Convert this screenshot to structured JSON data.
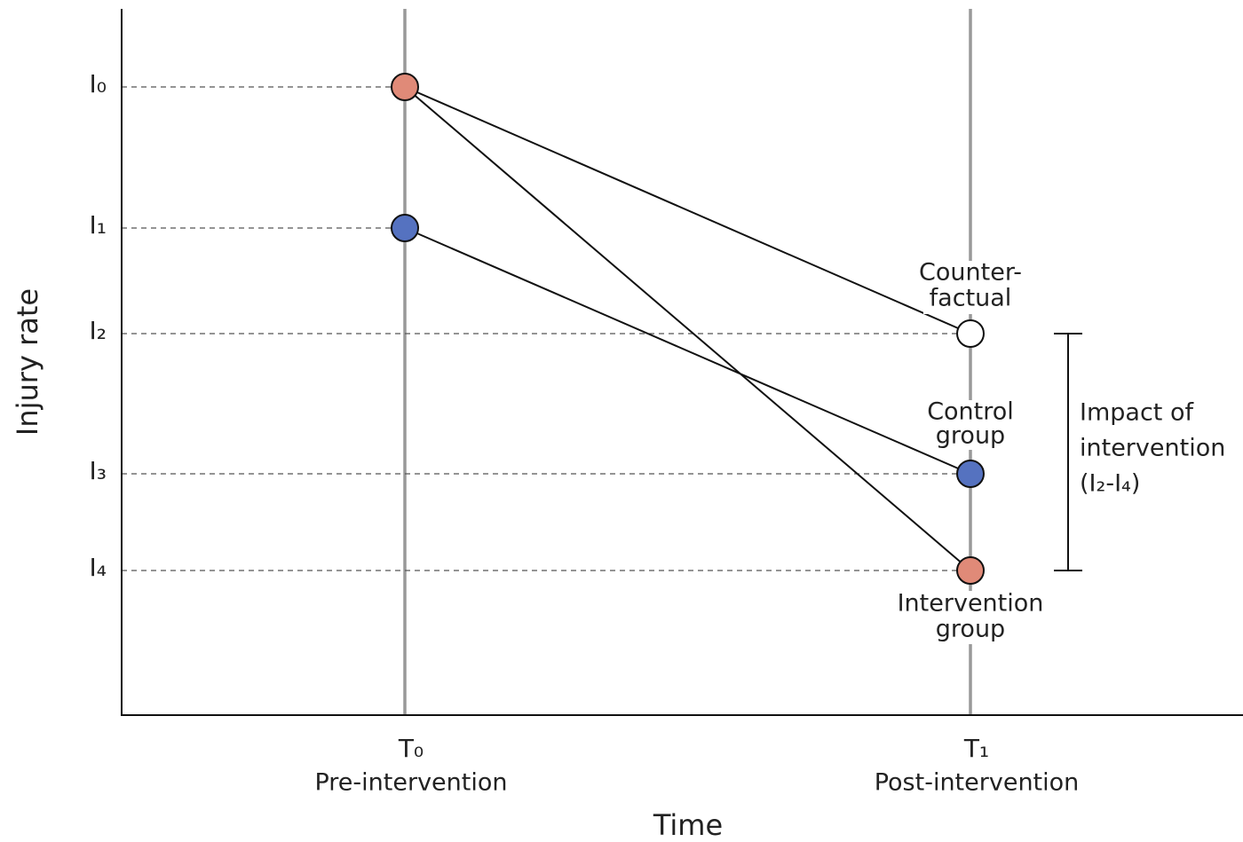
{
  "axes": {
    "y_title": "Injury rate",
    "x_title": "Time"
  },
  "y_levels": [
    "I₀",
    "I₁",
    "I₂",
    "I₃",
    "I₄"
  ],
  "time_points": [
    {
      "label": "T₀",
      "caption": "Pre-intervention"
    },
    {
      "label": "T₁",
      "caption": "Post-intervention"
    }
  ],
  "point_labels": {
    "counterfactual": [
      "Counter-",
      "factual"
    ],
    "control": [
      "Control",
      "group"
    ],
    "intervention": [
      "Intervention",
      "group"
    ]
  },
  "impact": [
    "Impact of",
    "intervention",
    "(I₂-I₄)"
  ]
}
